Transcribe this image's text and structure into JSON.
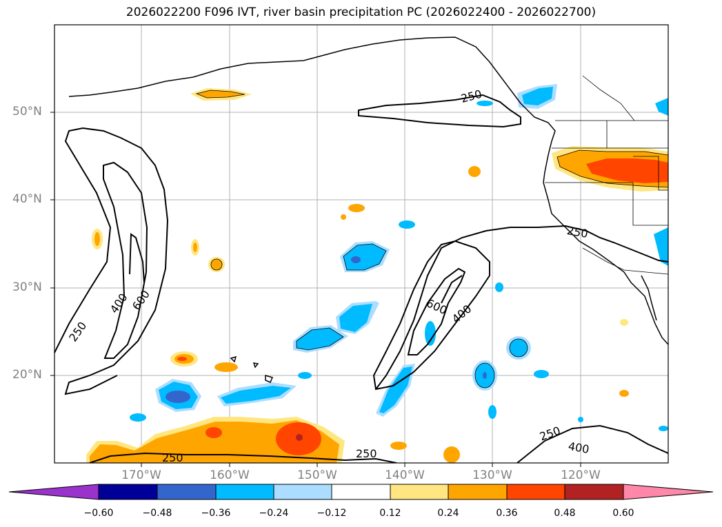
{
  "title": "2026022200 F096 IVT, river basin precipitation PC (2026022400 - 2026022700)",
  "latitude_labels": [
    {
      "lat": 50,
      "text": "50°N"
    },
    {
      "lat": 40,
      "text": "40°N"
    },
    {
      "lat": 30,
      "text": "30°N"
    },
    {
      "lat": 20,
      "text": "20°N"
    }
  ],
  "longitude_labels": [
    {
      "lon": -170,
      "text": "170°W"
    },
    {
      "lon": -160,
      "text": "160°W"
    },
    {
      "lon": -150,
      "text": "150°W"
    },
    {
      "lon": -140,
      "text": "140°W"
    },
    {
      "lon": -130,
      "text": "130°W"
    },
    {
      "lon": -120,
      "text": "120°W"
    }
  ],
  "ivt_contour_labels": [
    "250",
    "400",
    "600"
  ],
  "colorbar": {
    "tick_labels": [
      "−0.60",
      "−0.48",
      "−0.36",
      "−0.24",
      "−0.12",
      "0.12",
      "0.24",
      "0.36",
      "0.48",
      "0.60"
    ],
    "colors": [
      "#9933cc",
      "#000099",
      "#3366cc",
      "#00bbff",
      "#aaddff",
      "#ffffff",
      "#ffe680",
      "#ffa500",
      "#ff4500",
      "#b22222",
      "#ff88aa"
    ]
  }
}
